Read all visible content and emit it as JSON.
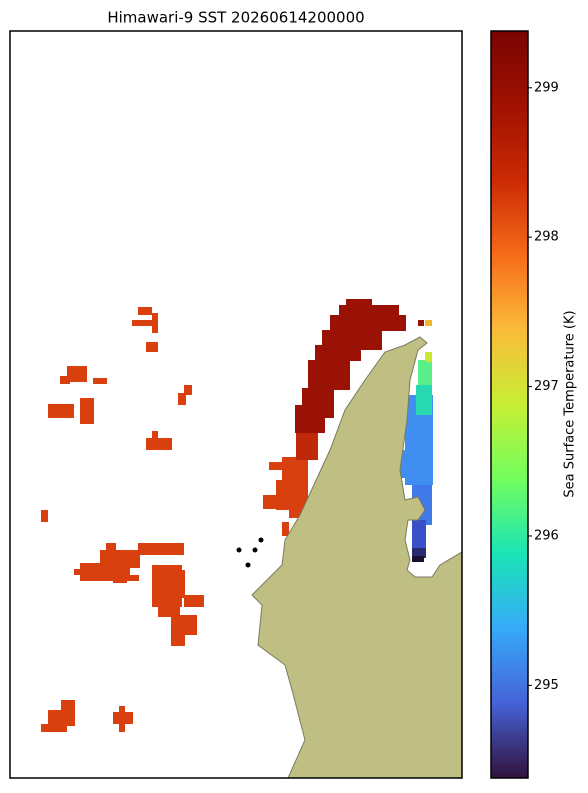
{
  "chart_data": {
    "type": "map",
    "title": "Himawari-9 SST 20260614200000",
    "colorbar": {
      "label": "Sea Surface Temperature (K)",
      "clim": [
        294.38,
        299.38
      ],
      "ticks": [
        295,
        296,
        297,
        298,
        299
      ],
      "colormap": "turbo"
    }
  }
}
